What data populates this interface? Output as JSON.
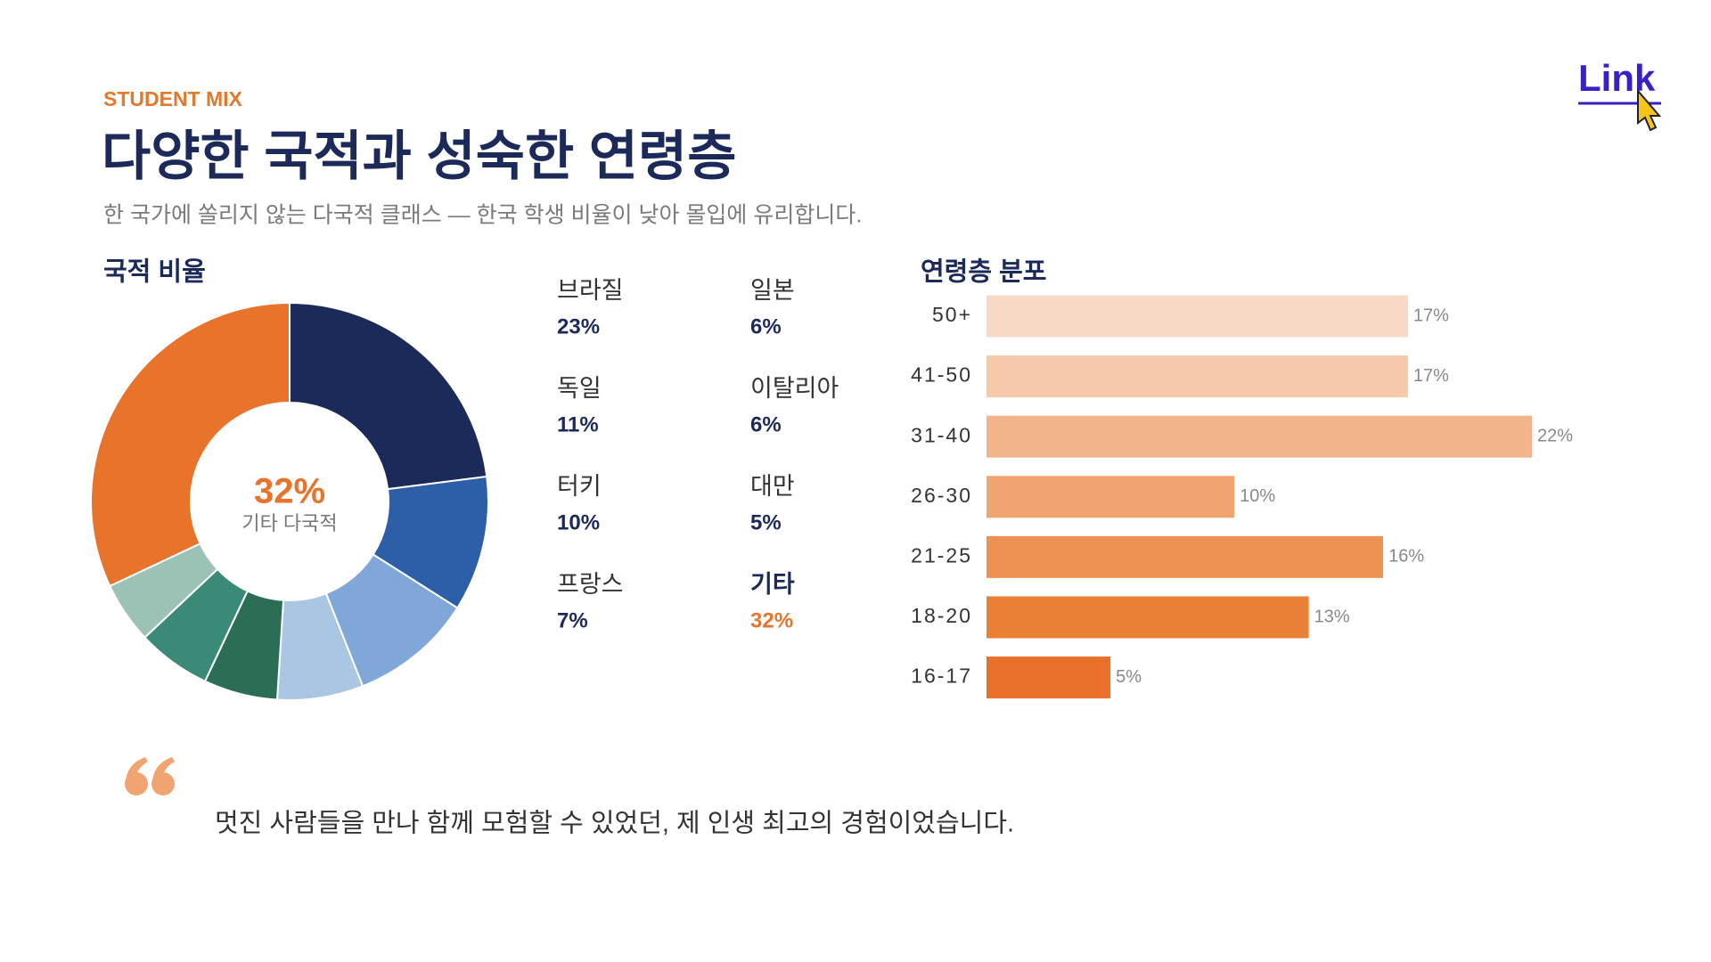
{
  "eyebrow": "STUDENT MIX",
  "title": "다양한 국적과 성숙한 연령층",
  "subtitle": "한 국가에 쏠리지 않는 다국적 클래스 — 한국 학생 비율이 낮아 몰입에 유리합니다.",
  "link": "Link",
  "quote": "멋진 사람들을 만나 함께 모험할 수 있었던, 제 인생 최고의 경험이었습니다.",
  "chart_data": [
    {
      "type": "pie",
      "title": "국적 비율",
      "categories": [
        "브라질",
        "독일",
        "터키",
        "프랑스",
        "일본",
        "이탈리아",
        "대만",
        "기타"
      ],
      "values": [
        23,
        11,
        10,
        7,
        6,
        6,
        5,
        32
      ],
      "value_labels": [
        "23%",
        "11%",
        "10%",
        "7%",
        "6%",
        "6%",
        "5%",
        "32%"
      ],
      "colors": [
        "#1c2a5a",
        "#2d5fa8",
        "#7fa7d8",
        "#a9c6e3",
        "#2c6e55",
        "#3a8a78",
        "#9bc2b5",
        "#e8742c"
      ],
      "center_label": "기타 다국적"
    },
    {
      "type": "bar",
      "title": "연령층 분포",
      "orientation": "horizontal",
      "categories": [
        "50+",
        "41-50",
        "31-40",
        "26-30",
        "21-25",
        "18-20",
        "16-17"
      ],
      "values": [
        17,
        17,
        22,
        10,
        16,
        13,
        5
      ],
      "value_labels": [
        "17%",
        "17%",
        "22%",
        "10%",
        "16%",
        "13%",
        "5%"
      ],
      "colors": [
        "#f8d9c5",
        "#f6c9a8",
        "#f3b48c",
        "#f0a46f",
        "#ed9253",
        "#ea8036",
        "#e8702a"
      ]
    }
  ]
}
